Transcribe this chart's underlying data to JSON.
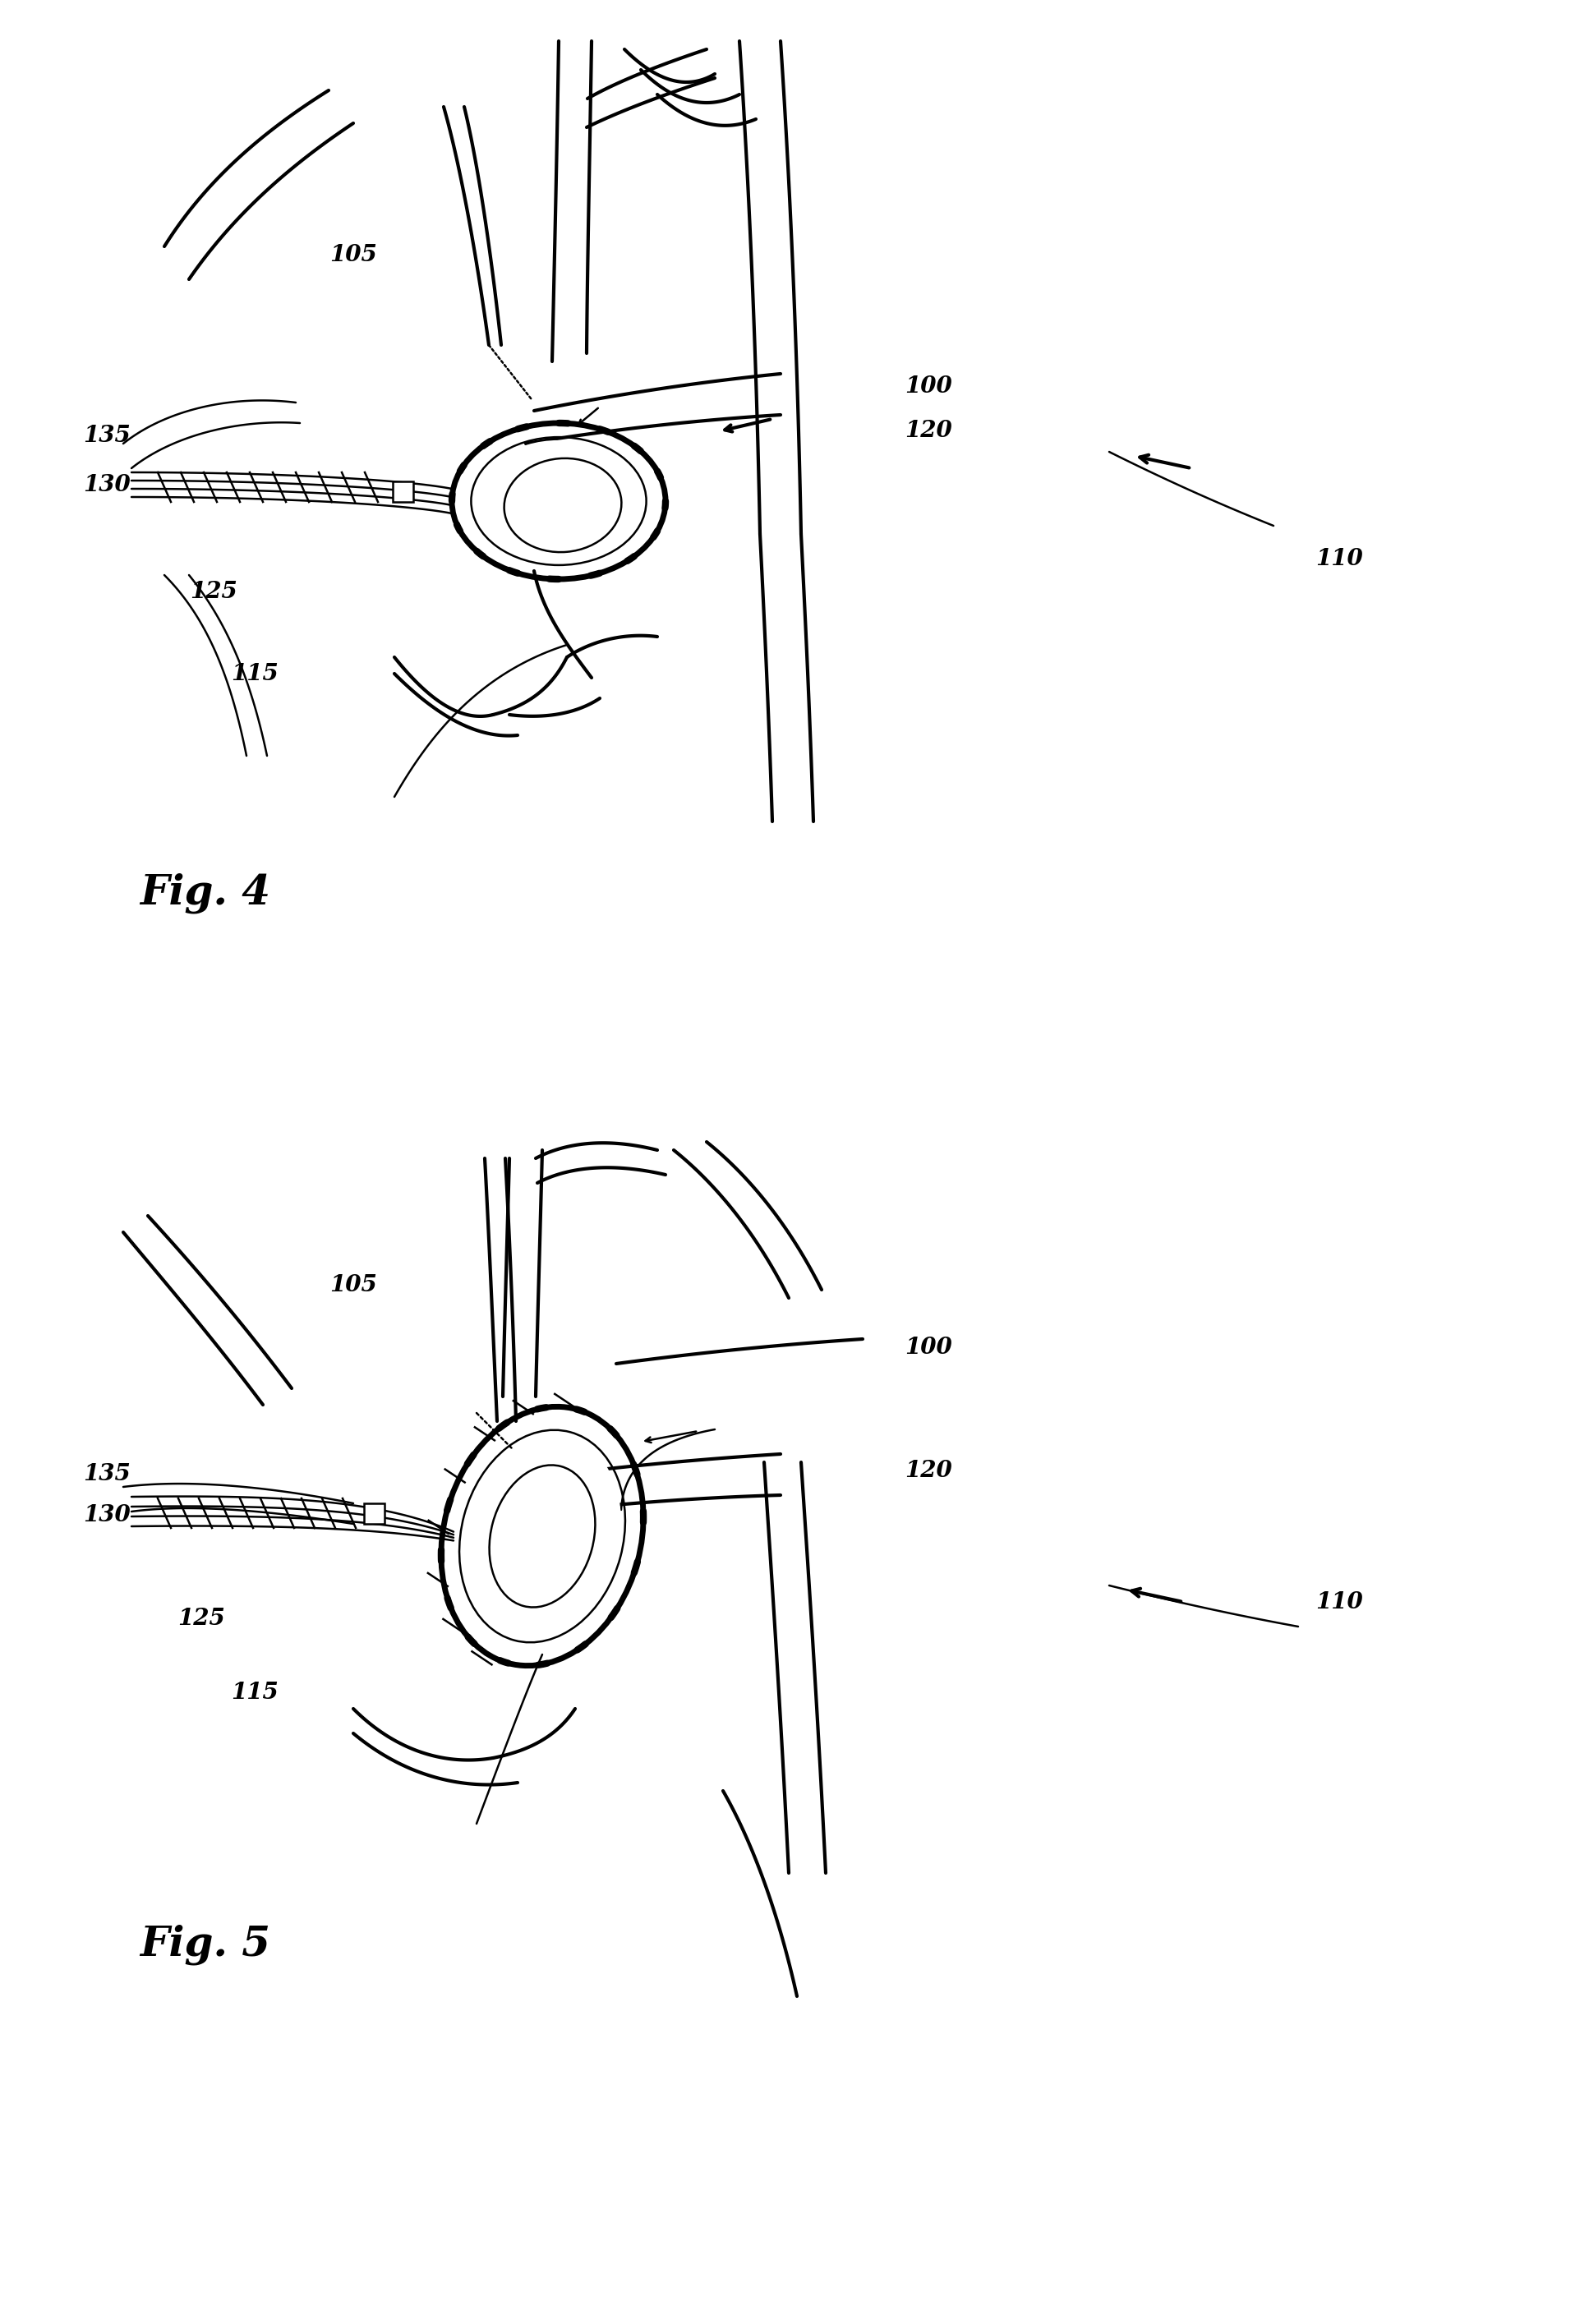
{
  "fig4_label": "Fig. 4",
  "fig5_label": "Fig. 5",
  "bg_color": "#ffffff",
  "line_color": "#000000",
  "label_fontsize": 20,
  "fig_label_fontsize": 36,
  "lw_thin": 1.8,
  "lw_med": 3.0,
  "lw_thick": 5.0
}
